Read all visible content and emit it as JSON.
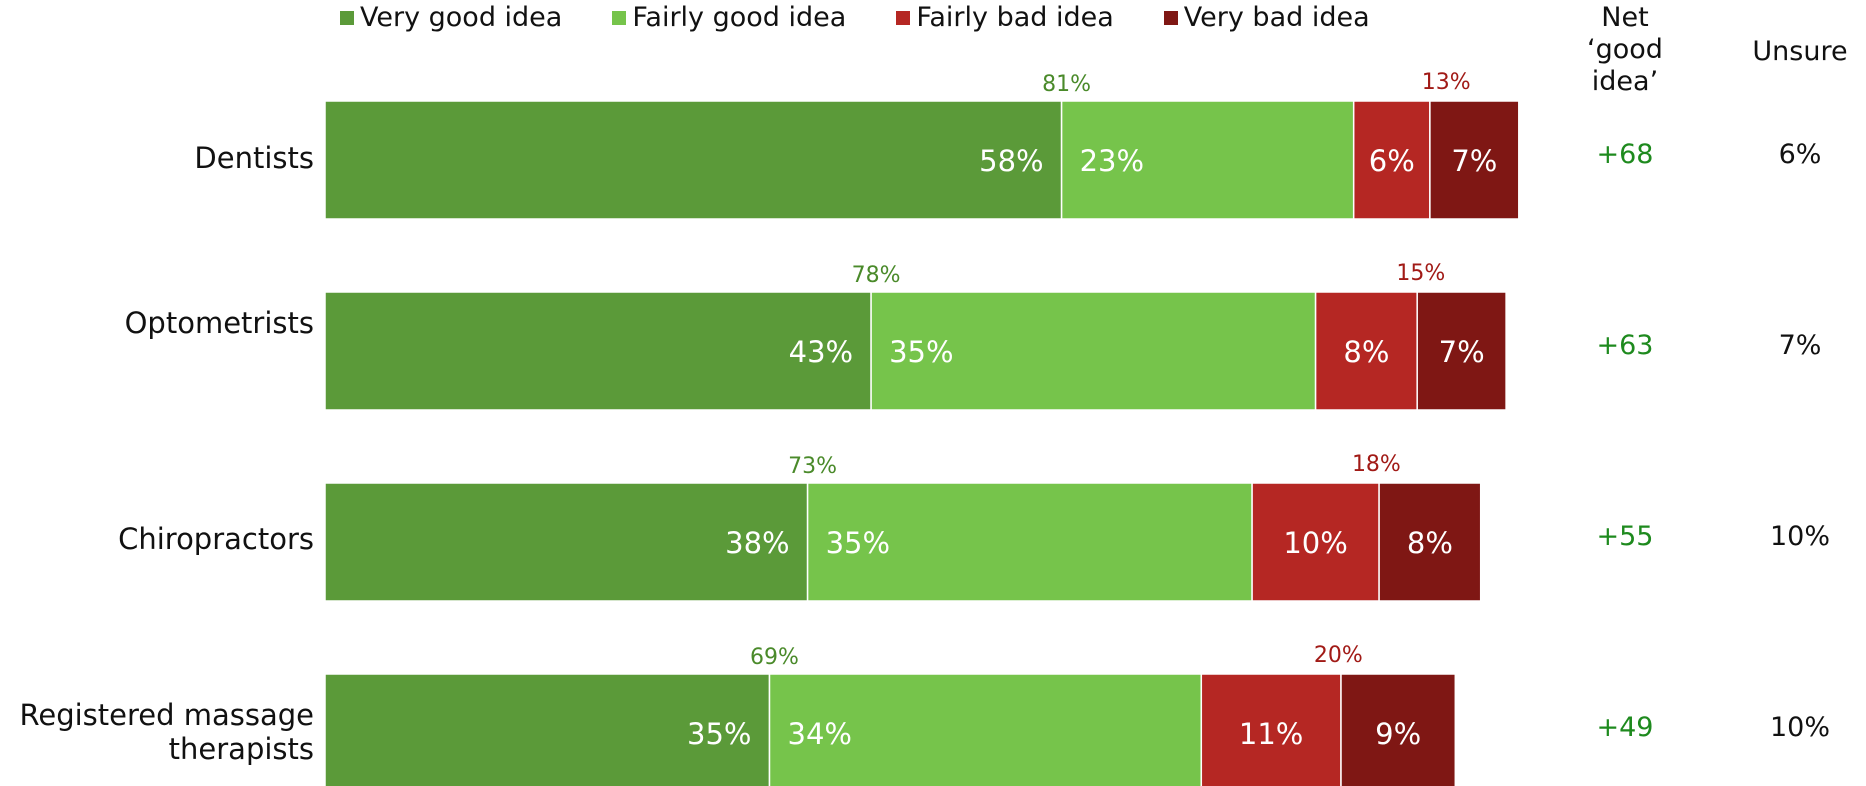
{
  "chart_data": {
    "type": "bar",
    "orientation": "horizontal",
    "stacked": true,
    "categories": [
      "Dentists",
      "Optometrists",
      "Chiropractors",
      "Registered massage therapists"
    ],
    "series": [
      {
        "name": "Very good idea",
        "color": "#5b9a39",
        "values": [
          58,
          43,
          38,
          35
        ]
      },
      {
        "name": "Fairly good idea",
        "color": "#76c44b",
        "values": [
          23,
          35,
          35,
          34
        ]
      },
      {
        "name": "Fairly bad idea",
        "color": "#b52723",
        "values": [
          6,
          8,
          10,
          11
        ]
      },
      {
        "name": "Very bad idea",
        "color": "#7f1714",
        "values": [
          7,
          7,
          8,
          9
        ]
      }
    ],
    "good_totals": [
      "81%",
      "78%",
      "73%",
      "69%"
    ],
    "bad_totals": [
      "13%",
      "15%",
      "18%",
      "20%"
    ],
    "net_header": "Net\n‘good idea’",
    "net_values": [
      "+68",
      "+63",
      "+55",
      "+49"
    ],
    "unsure_header": "Unsure",
    "unsure_values": [
      "6%",
      "7%",
      "10%",
      "10%"
    ],
    "good_total_color": "#4a8a2a",
    "bad_total_color": "#a11a16",
    "net_color": "#1e8a1e",
    "legend_position": "top",
    "grid": false
  }
}
